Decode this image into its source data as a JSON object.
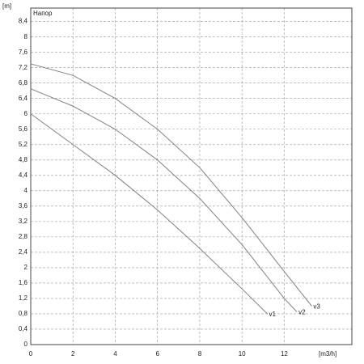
{
  "chart_data": {
    "type": "line",
    "y_label": "Напор",
    "y_unit": "[m]",
    "x_unit": "[m3/h]",
    "xlim": [
      0,
      15.2
    ],
    "ylim": [
      0,
      8.75
    ],
    "xticks": [
      0,
      2,
      4,
      6,
      8,
      10,
      12
    ],
    "yticks": [
      0,
      {
        "value": 0.4,
        "label": "0,4"
      },
      {
        "value": 0.8,
        "label": "0,8"
      },
      {
        "value": 1.2,
        "label": "1,2"
      },
      {
        "value": 1.6,
        "label": "1,6"
      },
      2,
      {
        "value": 2.4,
        "label": "2,4"
      },
      {
        "value": 2.8,
        "label": "2,8"
      },
      {
        "value": 3.2,
        "label": "3,2"
      },
      {
        "value": 3.6,
        "label": "3,6"
      },
      4,
      {
        "value": 4.4,
        "label": "4,4"
      },
      {
        "value": 4.8,
        "label": "4,8"
      },
      {
        "value": 5.2,
        "label": "5,2"
      },
      {
        "value": 5.6,
        "label": "5,6"
      },
      6,
      {
        "value": 6.4,
        "label": "6,4"
      },
      {
        "value": 6.8,
        "label": "6,8"
      },
      {
        "value": 7.2,
        "label": "7,2"
      },
      {
        "value": 7.6,
        "label": "7,6"
      },
      8,
      {
        "value": 8.4,
        "label": "8,4"
      }
    ],
    "grid": true,
    "series": [
      {
        "name": "v1",
        "color": "#808080",
        "x": [
          0,
          2,
          4,
          6,
          8,
          10,
          11.2
        ],
        "values": [
          6.0,
          5.2,
          4.4,
          3.5,
          2.5,
          1.45,
          0.8
        ]
      },
      {
        "name": "v2",
        "color": "#808080",
        "x": [
          0,
          2,
          4,
          6,
          8,
          10,
          12,
          12.6
        ],
        "values": [
          6.65,
          6.2,
          5.6,
          4.8,
          3.8,
          2.6,
          1.2,
          0.85
        ]
      },
      {
        "name": "v3",
        "color": "#808080",
        "x": [
          0,
          2,
          4,
          6,
          8,
          10,
          12,
          13.3
        ],
        "values": [
          7.3,
          7.0,
          6.4,
          5.6,
          4.6,
          3.3,
          1.9,
          1.0
        ]
      }
    ]
  }
}
